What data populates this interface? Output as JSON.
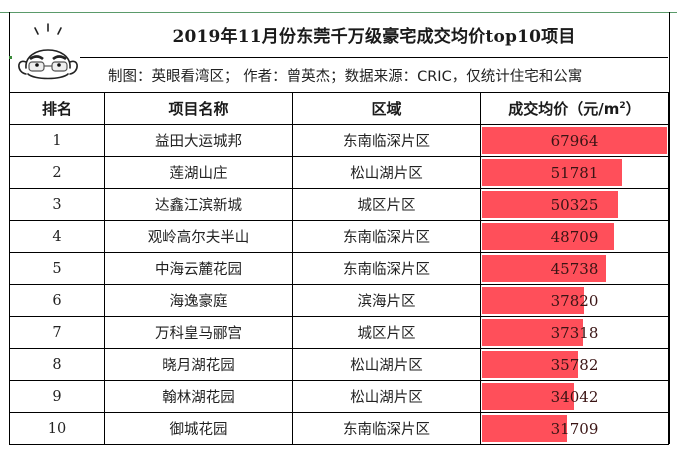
{
  "title": "2019年11月份东莞千万级豪宅成交均价top10项目",
  "subtitle": "制图：英眼看湾区； 作者：曾英杰；数据来源：CRIC，仅统计住宅和公寓",
  "avatar": {
    "icon": "bald-man-with-glasses-avatar"
  },
  "colors": {
    "bar": "#ff4f5a",
    "accent_line": "#5a9a6a",
    "border": "#000000"
  },
  "table": {
    "headers": {
      "rank": "排名",
      "name": "项目名称",
      "district": "区域",
      "price": "成交均价（元/㎡）"
    },
    "max_price": 67964,
    "rows": [
      {
        "rank": "1",
        "name": "益田大运城邦",
        "district": "东南临深片区",
        "price": "67964",
        "value": 67964
      },
      {
        "rank": "2",
        "name": "莲湖山庄",
        "district": "松山湖片区",
        "price": "51781",
        "value": 51781
      },
      {
        "rank": "3",
        "name": "达鑫江滨新城",
        "district": "城区片区",
        "price": "50325",
        "value": 50325
      },
      {
        "rank": "4",
        "name": "观岭高尔夫半山",
        "district": "东南临深片区",
        "price": "48709",
        "value": 48709
      },
      {
        "rank": "5",
        "name": "中海云麓花园",
        "district": "东南临深片区",
        "price": "45738",
        "value": 45738
      },
      {
        "rank": "6",
        "name": "海逸豪庭",
        "district": "滨海片区",
        "price": "37820",
        "value": 37820
      },
      {
        "rank": "7",
        "name": "万科皇马郦宫",
        "district": "城区片区",
        "price": "37318",
        "value": 37318
      },
      {
        "rank": "8",
        "name": "晓月湖花园",
        "district": "松山湖片区",
        "price": "35782",
        "value": 35782
      },
      {
        "rank": "9",
        "name": "翰林湖花园",
        "district": "松山湖片区",
        "price": "34042",
        "value": 34042
      },
      {
        "rank": "10",
        "name": "御城花园",
        "district": "东南临深片区",
        "price": "31709",
        "value": 31709
      }
    ]
  }
}
